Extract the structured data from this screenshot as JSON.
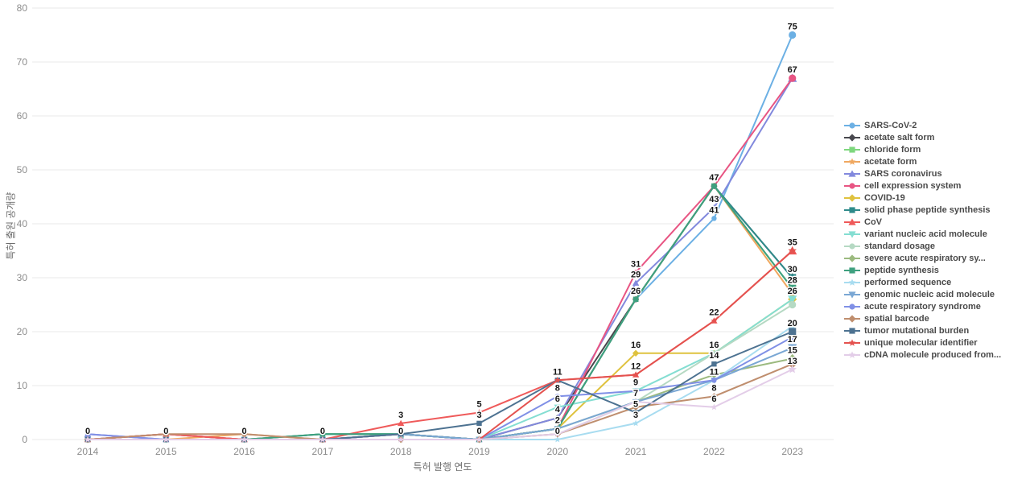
{
  "chart_data": {
    "type": "line",
    "x": [
      2014,
      2015,
      2016,
      2017,
      2018,
      2019,
      2020,
      2021,
      2022,
      2023
    ],
    "xlabel": "특허 발행 연도",
    "ylabel": "특허 출원 공개량",
    "ylim": [
      0,
      80
    ],
    "yticks": [
      0,
      10,
      20,
      30,
      40,
      50,
      60,
      70,
      80
    ],
    "grid": true,
    "legend_position": "right",
    "series": [
      {
        "name": "SARS-CoV-2",
        "color": "#6cb0e4",
        "marker": "circle",
        "values": [
          0,
          0,
          0,
          0,
          0,
          0,
          2,
          26,
          41,
          75
        ]
      },
      {
        "name": "acetate salt form",
        "color": "#48484e",
        "marker": "diamond",
        "values": [
          0,
          1,
          0,
          0,
          1,
          0,
          4,
          26,
          47,
          30
        ]
      },
      {
        "name": "chloride form",
        "color": "#7ed77e",
        "marker": "square",
        "values": [
          0,
          0,
          0,
          1,
          1,
          0,
          2,
          26,
          47,
          28
        ]
      },
      {
        "name": "acetate form",
        "color": "#f0a860",
        "marker": "star",
        "values": [
          0,
          0,
          1,
          0,
          1,
          0,
          2,
          26,
          47,
          27
        ]
      },
      {
        "name": "SARS coronavirus",
        "color": "#8289dd",
        "marker": "triangle-up",
        "values": [
          1,
          0,
          0,
          0,
          1,
          0,
          4,
          29,
          43,
          67
        ]
      },
      {
        "name": "cell expression system",
        "color": "#e85583",
        "marker": "circle",
        "values": [
          0,
          1,
          0,
          0,
          1,
          0,
          2,
          31,
          47,
          67
        ]
      },
      {
        "name": "COVID-19",
        "color": "#dfc23e",
        "marker": "diamond",
        "values": [
          0,
          0,
          0,
          0,
          0,
          0,
          2,
          16,
          16,
          26
        ]
      },
      {
        "name": "solid phase peptide synthesis",
        "color": "#2e8b8b",
        "marker": "square",
        "values": [
          0,
          0,
          0,
          1,
          1,
          0,
          2,
          26,
          47,
          30
        ]
      },
      {
        "name": "CoV",
        "color": "#ef5a5a",
        "marker": "triangle-up",
        "values": [
          0,
          1,
          0,
          0,
          3,
          5,
          11,
          12,
          22,
          35
        ]
      },
      {
        "name": "variant nucleic acid molecule",
        "color": "#84ded2",
        "marker": "triangle-down",
        "values": [
          0,
          0,
          0,
          0,
          0,
          0,
          6,
          9,
          16,
          26
        ]
      },
      {
        "name": "standard dosage",
        "color": "#b5d9c3",
        "marker": "circle",
        "values": [
          0,
          0,
          0,
          0,
          0,
          0,
          1,
          7,
          16,
          25
        ]
      },
      {
        "name": "severe acute respiratory sy...",
        "color": "#9cba7f",
        "marker": "diamond",
        "values": [
          0,
          0,
          0,
          0,
          0,
          0,
          2,
          7,
          12,
          15
        ]
      },
      {
        "name": "peptide synthesis",
        "color": "#3ea07f",
        "marker": "square",
        "values": [
          0,
          0,
          0,
          1,
          1,
          0,
          2,
          26,
          47,
          28
        ]
      },
      {
        "name": "performed sequence",
        "color": "#a8dcf0",
        "marker": "star",
        "values": [
          0,
          0,
          0,
          0,
          0,
          0,
          0,
          3,
          11,
          21
        ]
      },
      {
        "name": "genomic nucleic acid molecule",
        "color": "#7aa7d4",
        "marker": "triangle-down",
        "values": [
          0,
          0,
          0,
          0,
          1,
          0,
          2,
          7,
          11,
          17
        ]
      },
      {
        "name": "acute respiratory syndrome",
        "color": "#8090e6",
        "marker": "circle",
        "values": [
          1,
          0,
          0,
          0,
          0,
          0,
          8,
          9,
          11,
          19
        ]
      },
      {
        "name": "spatial barcode",
        "color": "#bf8e6e",
        "marker": "diamond",
        "values": [
          0,
          1,
          1,
          0,
          0,
          0,
          1,
          6,
          8,
          14
        ]
      },
      {
        "name": "tumor mutational burden",
        "color": "#4d7291",
        "marker": "square",
        "values": [
          0,
          0,
          0,
          0,
          1,
          3,
          11,
          5,
          14,
          20
        ]
      },
      {
        "name": "unique molecular identifier",
        "color": "#e4524f",
        "marker": "star",
        "values": [
          0,
          0,
          0,
          0,
          0,
          0,
          11,
          12,
          22,
          35
        ]
      },
      {
        "name": "cDNA molecule produced from...",
        "color": "#e3cde8",
        "marker": "star",
        "values": [
          0,
          0,
          0,
          0,
          0,
          0,
          1,
          7,
          6,
          13
        ]
      }
    ],
    "annotations": [
      {
        "year": 2014,
        "value": 0,
        "label": "0"
      },
      {
        "year": 2015,
        "value": 0,
        "label": "0"
      },
      {
        "year": 2016,
        "value": 0,
        "label": "0"
      },
      {
        "year": 2017,
        "value": 0,
        "label": "0"
      },
      {
        "year": 2018,
        "value": 3,
        "label": "3"
      },
      {
        "year": 2018,
        "value": 0,
        "label": "0"
      },
      {
        "year": 2019,
        "value": 5,
        "label": "5"
      },
      {
        "year": 2019,
        "value": 3,
        "label": "3"
      },
      {
        "year": 2019,
        "value": 0,
        "label": "0"
      },
      {
        "year": 2020,
        "value": 11,
        "label": "11"
      },
      {
        "year": 2020,
        "value": 8,
        "label": "8"
      },
      {
        "year": 2020,
        "value": 6,
        "label": "6"
      },
      {
        "year": 2020,
        "value": 4,
        "label": "4"
      },
      {
        "year": 2020,
        "value": 2,
        "label": "2"
      },
      {
        "year": 2020,
        "value": 0,
        "label": "0"
      },
      {
        "year": 2021,
        "value": 31,
        "label": "31"
      },
      {
        "year": 2021,
        "value": 29,
        "label": "29"
      },
      {
        "year": 2021,
        "value": 26,
        "label": "26"
      },
      {
        "year": 2021,
        "value": 16,
        "label": "16"
      },
      {
        "year": 2021,
        "value": 12,
        "label": "12"
      },
      {
        "year": 2021,
        "value": 9,
        "label": "9"
      },
      {
        "year": 2021,
        "value": 7,
        "label": "7"
      },
      {
        "year": 2021,
        "value": 5,
        "label": "5"
      },
      {
        "year": 2021,
        "value": 3,
        "label": "3"
      },
      {
        "year": 2022,
        "value": 47,
        "label": "47"
      },
      {
        "year": 2022,
        "value": 43,
        "label": "43"
      },
      {
        "year": 2022,
        "value": 41,
        "label": "41"
      },
      {
        "year": 2022,
        "value": 22,
        "label": "22"
      },
      {
        "year": 2022,
        "value": 16,
        "label": "16"
      },
      {
        "year": 2022,
        "value": 14,
        "label": "14"
      },
      {
        "year": 2022,
        "value": 11,
        "label": "11"
      },
      {
        "year": 2022,
        "value": 8,
        "label": "8"
      },
      {
        "year": 2022,
        "value": 6,
        "label": "6"
      },
      {
        "year": 2023,
        "value": 75,
        "label": "75"
      },
      {
        "year": 2023,
        "value": 67,
        "label": "67"
      },
      {
        "year": 2023,
        "value": 35,
        "label": "35"
      },
      {
        "year": 2023,
        "value": 30,
        "label": "30"
      },
      {
        "year": 2023,
        "value": 28,
        "label": "28"
      },
      {
        "year": 2023,
        "value": 26,
        "label": "26"
      },
      {
        "year": 2023,
        "value": 20,
        "label": "20"
      },
      {
        "year": 2023,
        "value": 17,
        "label": "17"
      },
      {
        "year": 2023,
        "value": 15,
        "label": "15"
      },
      {
        "year": 2023,
        "value": 13,
        "label": "13"
      }
    ]
  }
}
